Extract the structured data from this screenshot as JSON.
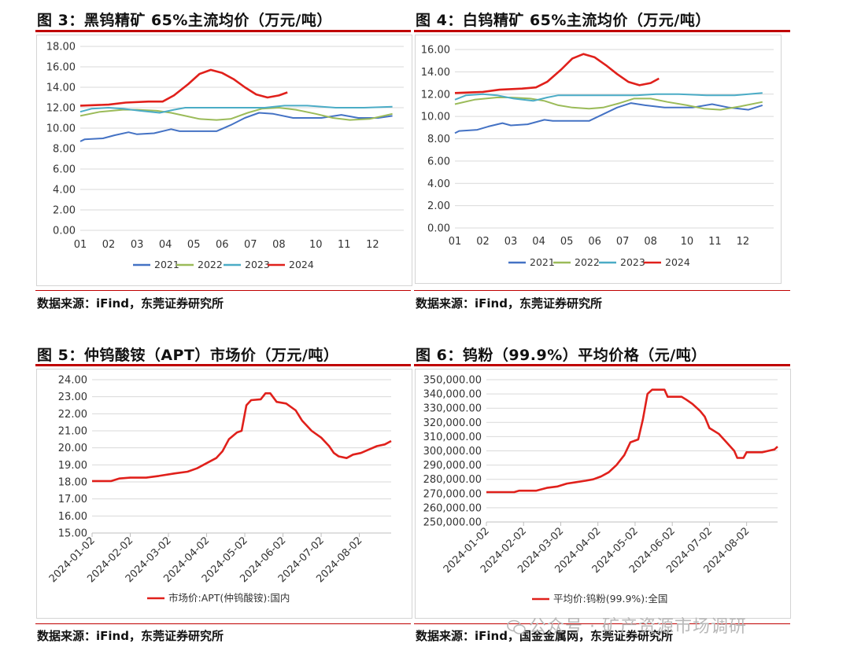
{
  "figures": [
    {
      "title": "图 3：黑钨精矿 65%主流均价（万元/吨）",
      "source": "数据来源：iFind，东莞证券研究所"
    },
    {
      "title": "图 4：白钨精矿 65%主流均价（万元/吨）",
      "source": "数据来源：iFind，东莞证券研究所"
    },
    {
      "title": "图 5：仲钨酸铵（APT）市场价（万元/吨）",
      "source": "数据来源：iFind，东莞证券研究所"
    },
    {
      "title": "图 6：钨粉（99.9%）平均价格（元/吨）",
      "source": "数据来源：iFind，国金金属网，东莞证券研究所"
    }
  ],
  "watermark": "公众号 · 矿产资源市场调研",
  "colors": {
    "accent": "#c00000",
    "s2021": "#4472c4",
    "s2022": "#9bbb59",
    "s2023": "#4bacc6",
    "s2024": "#e0201b"
  },
  "chart_data": [
    {
      "type": "line",
      "title": "黑钨精矿 65%主流均价（万元/吨）",
      "categories": [
        "01",
        "02",
        "03",
        "04",
        "05",
        "06",
        "07",
        "08",
        "10",
        "11",
        "12"
      ],
      "ylim": [
        0,
        18
      ],
      "yticks": [
        "0.00",
        "2.00",
        "4.00",
        "6.00",
        "8.00",
        "10.00",
        "12.00",
        "14.00",
        "16.00",
        "18.00"
      ],
      "series": [
        {
          "name": "2021",
          "color": "#4472c4",
          "points": [
            [
              0,
              8.7
            ],
            [
              0.15,
              8.9
            ],
            [
              0.8,
              9.0
            ],
            [
              1.2,
              9.3
            ],
            [
              1.7,
              9.6
            ],
            [
              2.0,
              9.4
            ],
            [
              2.6,
              9.5
            ],
            [
              3.2,
              9.9
            ],
            [
              3.5,
              9.7
            ],
            [
              4.2,
              9.7
            ],
            [
              4.8,
              9.7
            ],
            [
              5.3,
              10.3
            ],
            [
              5.8,
              11.0
            ],
            [
              6.3,
              11.5
            ],
            [
              6.8,
              11.4
            ],
            [
              7.5,
              11.0
            ],
            [
              8.5,
              11.0
            ],
            [
              9.2,
              11.3
            ],
            [
              9.8,
              11.0
            ],
            [
              10.5,
              11.0
            ],
            [
              11.0,
              11.2
            ]
          ]
        },
        {
          "name": "2022",
          "color": "#9bbb59",
          "points": [
            [
              0,
              11.2
            ],
            [
              0.7,
              11.6
            ],
            [
              1.5,
              11.8
            ],
            [
              2.0,
              11.8
            ],
            [
              2.7,
              11.7
            ],
            [
              3.2,
              11.5
            ],
            [
              3.7,
              11.2
            ],
            [
              4.2,
              10.9
            ],
            [
              4.8,
              10.8
            ],
            [
              5.3,
              10.9
            ],
            [
              5.9,
              11.5
            ],
            [
              6.4,
              11.9
            ],
            [
              7.0,
              12.0
            ],
            [
              7.6,
              11.8
            ],
            [
              8.3,
              11.4
            ],
            [
              8.9,
              11.0
            ],
            [
              9.5,
              10.8
            ],
            [
              10.2,
              10.9
            ],
            [
              11.0,
              11.4
            ]
          ]
        },
        {
          "name": "2023",
          "color": "#4bacc6",
          "points": [
            [
              0,
              11.6
            ],
            [
              0.4,
              11.9
            ],
            [
              1.0,
              12.0
            ],
            [
              1.5,
              11.9
            ],
            [
              2.1,
              11.7
            ],
            [
              2.8,
              11.5
            ],
            [
              3.3,
              11.8
            ],
            [
              3.7,
              12.0
            ],
            [
              4.5,
              12.0
            ],
            [
              5.5,
              12.0
            ],
            [
              6.5,
              12.0
            ],
            [
              7.2,
              12.2
            ],
            [
              8.0,
              12.2
            ],
            [
              9.0,
              12.0
            ],
            [
              10.0,
              12.0
            ],
            [
              11.0,
              12.1
            ]
          ]
        },
        {
          "name": "2024",
          "color": "#e0201b",
          "points": [
            [
              0,
              12.2
            ],
            [
              1.0,
              12.3
            ],
            [
              1.6,
              12.5
            ],
            [
              2.4,
              12.6
            ],
            [
              2.9,
              12.6
            ],
            [
              3.3,
              13.2
            ],
            [
              3.8,
              14.3
            ],
            [
              4.2,
              15.3
            ],
            [
              4.6,
              15.7
            ],
            [
              5.0,
              15.4
            ],
            [
              5.4,
              14.8
            ],
            [
              5.8,
              14.0
            ],
            [
              6.2,
              13.3
            ],
            [
              6.6,
              13.0
            ],
            [
              7.0,
              13.2
            ],
            [
              7.3,
              13.5
            ]
          ]
        }
      ],
      "legend": [
        "2021",
        "2022",
        "2023",
        "2024"
      ]
    },
    {
      "type": "line",
      "title": "白钨精矿 65%主流均价（万元/吨）",
      "categories": [
        "01",
        "02",
        "03",
        "04",
        "05",
        "06",
        "07",
        "08",
        "10",
        "11",
        "12"
      ],
      "ylim": [
        0,
        16
      ],
      "yticks": [
        "0.00",
        "2.00",
        "4.00",
        "6.00",
        "8.00",
        "10.00",
        "12.00",
        "14.00",
        "16.00"
      ],
      "series": [
        {
          "name": "2021",
          "color": "#4472c4",
          "points": [
            [
              0,
              8.5
            ],
            [
              0.15,
              8.7
            ],
            [
              0.8,
              8.8
            ],
            [
              1.2,
              9.1
            ],
            [
              1.7,
              9.4
            ],
            [
              2.0,
              9.2
            ],
            [
              2.6,
              9.3
            ],
            [
              3.2,
              9.7
            ],
            [
              3.5,
              9.6
            ],
            [
              4.2,
              9.6
            ],
            [
              4.8,
              9.6
            ],
            [
              5.3,
              10.2
            ],
            [
              5.8,
              10.8
            ],
            [
              6.3,
              11.2
            ],
            [
              6.8,
              11.0
            ],
            [
              7.5,
              10.8
            ],
            [
              8.5,
              10.8
            ],
            [
              9.2,
              11.1
            ],
            [
              9.8,
              10.8
            ],
            [
              10.5,
              10.6
            ],
            [
              11.0,
              11.0
            ]
          ]
        },
        {
          "name": "2022",
          "color": "#9bbb59",
          "points": [
            [
              0,
              11.1
            ],
            [
              0.7,
              11.5
            ],
            [
              1.5,
              11.7
            ],
            [
              2.0,
              11.7
            ],
            [
              2.7,
              11.6
            ],
            [
              3.2,
              11.4
            ],
            [
              3.7,
              11.0
            ],
            [
              4.2,
              10.8
            ],
            [
              4.8,
              10.7
            ],
            [
              5.3,
              10.8
            ],
            [
              5.9,
              11.2
            ],
            [
              6.4,
              11.6
            ],
            [
              7.0,
              11.6
            ],
            [
              7.6,
              11.3
            ],
            [
              8.3,
              11.0
            ],
            [
              8.9,
              10.7
            ],
            [
              9.5,
              10.6
            ],
            [
              10.2,
              10.9
            ],
            [
              11.0,
              11.3
            ]
          ]
        },
        {
          "name": "2023",
          "color": "#4bacc6",
          "points": [
            [
              0,
              11.5
            ],
            [
              0.4,
              11.9
            ],
            [
              1.0,
              12.0
            ],
            [
              1.5,
              11.9
            ],
            [
              2.1,
              11.6
            ],
            [
              2.8,
              11.4
            ],
            [
              3.3,
              11.7
            ],
            [
              3.7,
              11.9
            ],
            [
              4.5,
              11.9
            ],
            [
              5.5,
              11.9
            ],
            [
              6.5,
              11.9
            ],
            [
              7.2,
              12.0
            ],
            [
              8.0,
              12.0
            ],
            [
              9.0,
              11.9
            ],
            [
              10.0,
              11.9
            ],
            [
              11.0,
              12.1
            ]
          ]
        },
        {
          "name": "2024",
          "color": "#e0201b",
          "points": [
            [
              0,
              12.1
            ],
            [
              1.0,
              12.2
            ],
            [
              1.6,
              12.4
            ],
            [
              2.4,
              12.5
            ],
            [
              2.9,
              12.6
            ],
            [
              3.3,
              13.1
            ],
            [
              3.8,
              14.2
            ],
            [
              4.2,
              15.2
            ],
            [
              4.6,
              15.6
            ],
            [
              5.0,
              15.3
            ],
            [
              5.4,
              14.6
            ],
            [
              5.8,
              13.8
            ],
            [
              6.2,
              13.1
            ],
            [
              6.6,
              12.8
            ],
            [
              7.0,
              13.0
            ],
            [
              7.3,
              13.4
            ]
          ]
        }
      ],
      "legend": [
        "2021",
        "2022",
        "2023",
        "2024"
      ]
    },
    {
      "type": "line",
      "title": "仲钨酸铵（APT）市场价（万元/吨）",
      "categories": [
        "2024-01-02",
        "2024-02-02",
        "2024-03-02",
        "2024-04-02",
        "2024-05-02",
        "2024-06-02",
        "2024-07-02",
        "2024-08-02"
      ],
      "ylim": [
        15,
        24
      ],
      "yticks": [
        "15.00",
        "16.00",
        "17.00",
        "18.00",
        "19.00",
        "20.00",
        "21.00",
        "22.00",
        "23.00",
        "24.00"
      ],
      "series": [
        {
          "name": "市场价:APT(仲钨酸铵):国内",
          "color": "#e0201b",
          "points": [
            [
              0,
              18.05
            ],
            [
              0.6,
              18.05
            ],
            [
              0.85,
              18.2
            ],
            [
              1.2,
              18.25
            ],
            [
              1.7,
              18.25
            ],
            [
              2.1,
              18.35
            ],
            [
              2.6,
              18.5
            ],
            [
              3.0,
              18.6
            ],
            [
              3.3,
              18.8
            ],
            [
              3.6,
              19.1
            ],
            [
              3.9,
              19.4
            ],
            [
              4.1,
              19.8
            ],
            [
              4.3,
              20.5
            ],
            [
              4.55,
              20.9
            ],
            [
              4.7,
              21.0
            ],
            [
              4.85,
              22.5
            ],
            [
              5.0,
              22.8
            ],
            [
              5.3,
              22.85
            ],
            [
              5.45,
              23.2
            ],
            [
              5.6,
              23.2
            ],
            [
              5.8,
              22.7
            ],
            [
              6.1,
              22.6
            ],
            [
              6.4,
              22.2
            ],
            [
              6.6,
              21.6
            ],
            [
              6.9,
              21.0
            ],
            [
              7.2,
              20.6
            ],
            [
              7.45,
              20.1
            ],
            [
              7.6,
              19.7
            ],
            [
              7.75,
              19.5
            ],
            [
              8.0,
              19.4
            ],
            [
              8.2,
              19.6
            ],
            [
              8.45,
              19.7
            ],
            [
              8.7,
              19.9
            ],
            [
              8.95,
              20.1
            ],
            [
              9.2,
              20.2
            ],
            [
              9.4,
              20.4
            ]
          ]
        }
      ],
      "legend": [
        "市场价:APT(仲钨酸铵):国内"
      ]
    },
    {
      "type": "line",
      "title": "钨粉（99.9%）平均价格（元/吨）",
      "categories": [
        "2024-01-02",
        "2024-02-02",
        "2024-03-02",
        "2024-04-02",
        "2024-05-02",
        "2024-06-02",
        "2024-07-02",
        "2024-08-02"
      ],
      "ylim": [
        250000,
        350000
      ],
      "yticks": [
        "250,000.00",
        "260,000.00",
        "270,000.00",
        "280,000.00",
        "290,000.00",
        "300,000.00",
        "310,000.00",
        "320,000.00",
        "330,000.00",
        "340,000.00",
        "350,000.00"
      ],
      "series": [
        {
          "name": "平均价:钨粉(99.9%):全国",
          "color": "#e0201b",
          "points": [
            [
              0,
              271000
            ],
            [
              0.9,
              271000
            ],
            [
              1.05,
              272000
            ],
            [
              1.6,
              272000
            ],
            [
              1.95,
              274000
            ],
            [
              2.3,
              275000
            ],
            [
              2.6,
              277000
            ],
            [
              2.9,
              278000
            ],
            [
              3.2,
              279000
            ],
            [
              3.45,
              280000
            ],
            [
              3.7,
              282000
            ],
            [
              3.95,
              285000
            ],
            [
              4.2,
              290000
            ],
            [
              4.45,
              297000
            ],
            [
              4.65,
              306000
            ],
            [
              4.9,
              308000
            ],
            [
              5.05,
              322000
            ],
            [
              5.2,
              340000
            ],
            [
              5.35,
              343000
            ],
            [
              5.75,
              343000
            ],
            [
              5.85,
              338000
            ],
            [
              6.3,
              338000
            ],
            [
              6.45,
              336000
            ],
            [
              6.65,
              333000
            ],
            [
              6.9,
              328000
            ],
            [
              7.05,
              324000
            ],
            [
              7.2,
              316000
            ],
            [
              7.5,
              312000
            ],
            [
              7.75,
              306000
            ],
            [
              8.0,
              300000
            ],
            [
              8.1,
              295000
            ],
            [
              8.3,
              295000
            ],
            [
              8.4,
              299000
            ],
            [
              8.9,
              299000
            ],
            [
              9.1,
              300000
            ],
            [
              9.3,
              301000
            ],
            [
              9.4,
              303000
            ]
          ]
        }
      ],
      "legend": [
        "平均价:钨粉(99.9%):全国"
      ]
    }
  ]
}
